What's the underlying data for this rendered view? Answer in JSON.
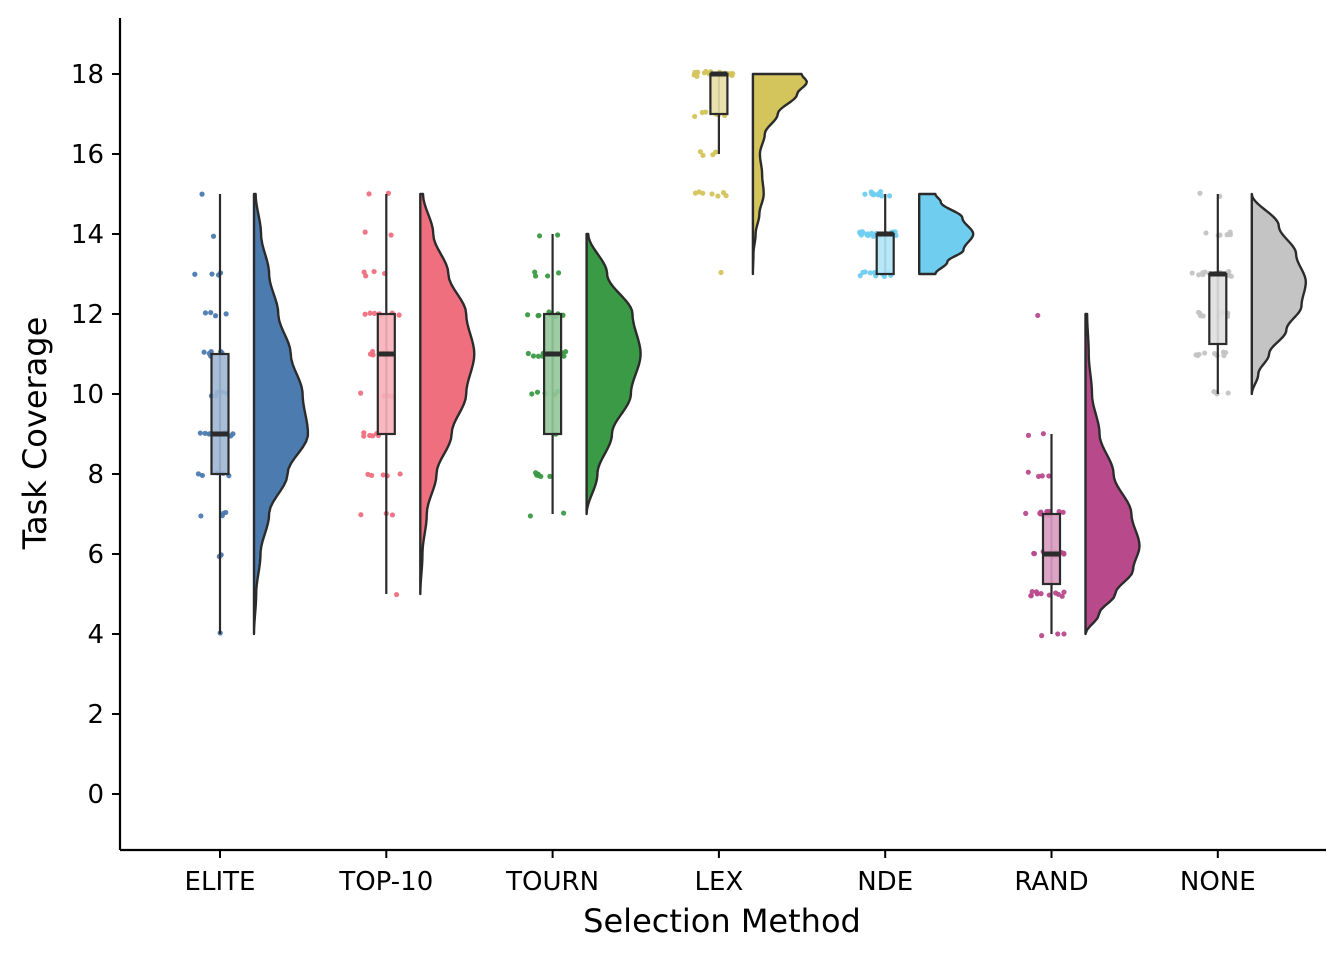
{
  "chart_data": {
    "type": "raincloud",
    "title": "",
    "xlabel": "Selection Method",
    "ylabel": "Task Coverage",
    "ylim": [
      -1.4,
      19.4
    ],
    "yticks": [
      0,
      2,
      4,
      6,
      8,
      10,
      12,
      14,
      16,
      18
    ],
    "grid": false,
    "legend": "none",
    "categories": [
      "ELITE",
      "TOP-10",
      "TOURN",
      "LEX",
      "NDE",
      "RAND",
      "NONE"
    ],
    "series": [
      {
        "category": "ELITE",
        "color": "#4c7bb0",
        "box": {
          "min": 4,
          "q1": 8,
          "median": 9,
          "q3": 11,
          "max": 15
        },
        "violin_range": [
          4,
          15
        ],
        "density": [
          [
            4,
            0.0
          ],
          [
            5,
            0.04
          ],
          [
            6,
            0.12
          ],
          [
            7,
            0.28
          ],
          [
            8,
            0.62
          ],
          [
            9,
            1.0
          ],
          [
            10,
            0.9
          ],
          [
            11,
            0.68
          ],
          [
            12,
            0.45
          ],
          [
            13,
            0.28
          ],
          [
            14,
            0.13
          ],
          [
            15,
            0.03
          ]
        ],
        "points": [
          [
            4,
            1
          ],
          [
            6,
            2
          ],
          [
            7,
            4
          ],
          [
            8,
            5
          ],
          [
            9,
            8
          ],
          [
            10,
            5
          ],
          [
            11,
            7
          ],
          [
            12,
            4
          ],
          [
            13,
            4
          ],
          [
            14,
            1
          ],
          [
            15,
            1
          ]
        ]
      },
      {
        "category": "TOP-10",
        "color": "#ef6f7f",
        "box": {
          "min": 5,
          "q1": 9,
          "median": 11,
          "q3": 12,
          "max": 15
        },
        "violin_range": [
          5,
          15
        ],
        "density": [
          [
            5,
            0.0
          ],
          [
            6,
            0.04
          ],
          [
            7,
            0.12
          ],
          [
            8,
            0.3
          ],
          [
            9,
            0.58
          ],
          [
            10,
            0.85
          ],
          [
            11,
            1.0
          ],
          [
            12,
            0.85
          ],
          [
            13,
            0.52
          ],
          [
            14,
            0.24
          ],
          [
            15,
            0.05
          ]
        ],
        "points": [
          [
            5,
            1
          ],
          [
            7,
            3
          ],
          [
            8,
            5
          ],
          [
            9,
            6
          ],
          [
            10,
            4
          ],
          [
            11,
            9
          ],
          [
            12,
            7
          ],
          [
            13,
            4
          ],
          [
            14,
            2
          ],
          [
            15,
            2
          ]
        ]
      },
      {
        "category": "TOURN",
        "color": "#3a9a45",
        "box": {
          "min": 7,
          "q1": 9,
          "median": 11,
          "q3": 12,
          "max": 14
        },
        "violin_range": [
          7,
          14
        ],
        "density": [
          [
            7,
            0.0
          ],
          [
            8,
            0.2
          ],
          [
            9,
            0.47
          ],
          [
            10,
            0.82
          ],
          [
            11,
            1.0
          ],
          [
            12,
            0.85
          ],
          [
            13,
            0.38
          ],
          [
            14,
            0.03
          ]
        ],
        "points": [
          [
            7,
            2
          ],
          [
            8,
            6
          ],
          [
            9,
            1
          ],
          [
            10,
            6
          ],
          [
            11,
            12
          ],
          [
            12,
            10
          ],
          [
            13,
            4
          ],
          [
            14,
            2
          ]
        ]
      },
      {
        "category": "LEX",
        "color": "#d4c45c",
        "box": {
          "min": 16,
          "q1": 17,
          "median": 18,
          "q3": 18,
          "max": 18
        },
        "violin_range": [
          13,
          18
        ],
        "density": [
          [
            13,
            0.0
          ],
          [
            13.5,
            0.01
          ],
          [
            14,
            0.05
          ],
          [
            14.5,
            0.12
          ],
          [
            15,
            0.2
          ],
          [
            15.5,
            0.17
          ],
          [
            16,
            0.13
          ],
          [
            16.5,
            0.22
          ],
          [
            17,
            0.46
          ],
          [
            17.5,
            0.82
          ],
          [
            17.8,
            1.0
          ],
          [
            18,
            0.9
          ]
        ],
        "points": [
          [
            13,
            1
          ],
          [
            15,
            7
          ],
          [
            16,
            4
          ],
          [
            17,
            8
          ],
          [
            18,
            24
          ]
        ]
      },
      {
        "category": "NDE",
        "color": "#6fcdf0",
        "box": {
          "min": 13,
          "q1": 13,
          "median": 14,
          "q3": 14,
          "max": 15
        },
        "violin_range": [
          13,
          15
        ],
        "density": [
          [
            13,
            0.3
          ],
          [
            13.3,
            0.52
          ],
          [
            13.6,
            0.82
          ],
          [
            14,
            1.0
          ],
          [
            14.4,
            0.8
          ],
          [
            14.8,
            0.4
          ],
          [
            15,
            0.3
          ]
        ],
        "points": [
          [
            13,
            12
          ],
          [
            14,
            20
          ],
          [
            15,
            10
          ]
        ]
      },
      {
        "category": "RAND",
        "color": "#b84a8c",
        "box": {
          "min": 4,
          "q1": 5.25,
          "median": 6,
          "q3": 7,
          "max": 9
        },
        "violin_range": [
          4,
          12
        ],
        "density": [
          [
            4,
            0.0
          ],
          [
            4.5,
            0.25
          ],
          [
            5,
            0.55
          ],
          [
            5.6,
            0.88
          ],
          [
            6.2,
            1.0
          ],
          [
            7,
            0.85
          ],
          [
            8,
            0.52
          ],
          [
            9,
            0.26
          ],
          [
            10,
            0.12
          ],
          [
            11,
            0.06
          ],
          [
            12,
            0.03
          ]
        ],
        "points": [
          [
            4,
            3
          ],
          [
            5,
            11
          ],
          [
            6,
            13
          ],
          [
            7,
            11
          ],
          [
            8,
            4
          ],
          [
            9,
            2
          ],
          [
            12,
            1
          ]
        ]
      },
      {
        "category": "NONE",
        "color": "#c4c4c4",
        "box": {
          "min": 10,
          "q1": 11.25,
          "median": 13,
          "q3": 13,
          "max": 15
        },
        "violin_range": [
          10,
          15
        ],
        "density": [
          [
            10,
            0.0
          ],
          [
            10.5,
            0.12
          ],
          [
            11,
            0.32
          ],
          [
            11.6,
            0.64
          ],
          [
            12.2,
            0.92
          ],
          [
            12.8,
            1.0
          ],
          [
            13.5,
            0.82
          ],
          [
            14.2,
            0.5
          ],
          [
            15,
            0.0
          ]
        ],
        "points": [
          [
            10,
            4
          ],
          [
            11,
            9
          ],
          [
            12,
            10
          ],
          [
            13,
            16
          ],
          [
            14,
            6
          ],
          [
            15,
            2
          ]
        ]
      }
    ]
  }
}
